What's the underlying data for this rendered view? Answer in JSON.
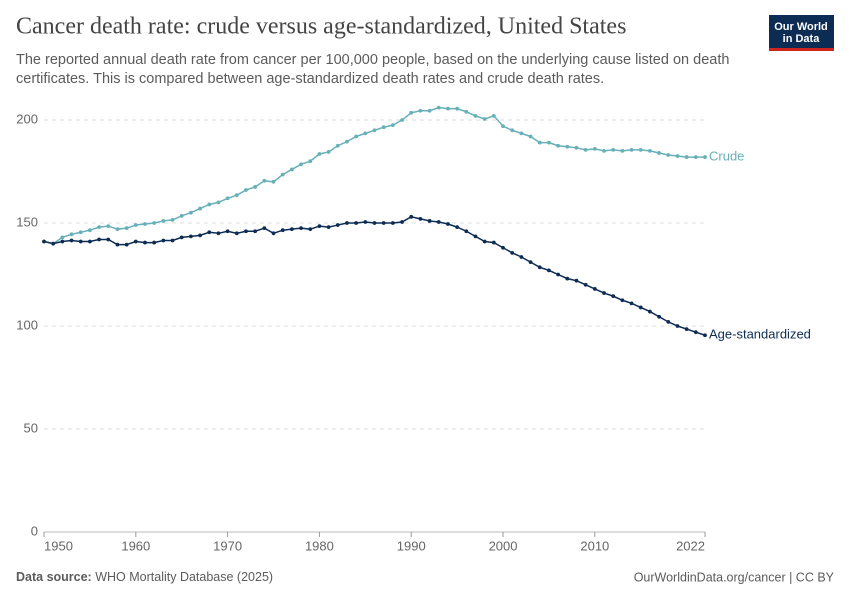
{
  "chart_data": {
    "type": "line",
    "title": "Cancer death rate: crude versus age-standardized, United States",
    "subtitle": [
      "The reported annual death rate from cancer per 100,000 people, based on the underlying cause listed on death",
      "certificates. This is compared between age-standardized death rates and crude death rates."
    ],
    "logo": [
      "Our World",
      "in Data"
    ],
    "source_label": "Data source:",
    "source": "WHO Mortality Database (2025)",
    "url": "OurWorldinData.org/cancer | CC BY",
    "x": [
      1950,
      1951,
      1952,
      1953,
      1954,
      1955,
      1956,
      1957,
      1958,
      1959,
      1960,
      1961,
      1962,
      1963,
      1964,
      1965,
      1966,
      1967,
      1968,
      1969,
      1970,
      1971,
      1972,
      1973,
      1974,
      1975,
      1976,
      1977,
      1978,
      1979,
      1980,
      1981,
      1982,
      1983,
      1984,
      1985,
      1986,
      1987,
      1988,
      1989,
      1990,
      1991,
      1992,
      1993,
      1994,
      1995,
      1996,
      1997,
      1998,
      1999,
      2000,
      2001,
      2002,
      2003,
      2004,
      2005,
      2006,
      2007,
      2008,
      2009,
      2010,
      2011,
      2012,
      2013,
      2014,
      2015,
      2016,
      2017,
      2018,
      2019,
      2020,
      2021,
      2022
    ],
    "series": [
      {
        "name": "Crude",
        "color": "#67b0b8",
        "values": [
          141,
          140,
          143,
          144.5,
          145.5,
          146.5,
          148,
          148.5,
          147,
          147.5,
          149,
          149.5,
          150,
          151,
          151.5,
          153.5,
          155,
          157,
          159,
          160,
          162,
          163.5,
          166,
          167.5,
          170.5,
          170,
          173.5,
          176,
          178.5,
          180,
          183.5,
          184.5,
          187.5,
          189.5,
          192,
          193.5,
          195,
          196.5,
          197.5,
          200,
          203.5,
          204.5,
          204.5,
          206,
          205.5,
          205.5,
          204,
          202,
          200.5,
          202,
          197,
          195,
          193.5,
          192,
          189,
          189,
          187.5,
          187,
          186.5,
          185.5,
          186,
          185,
          185.5,
          185,
          185.5,
          185.5,
          185,
          184,
          183,
          182.5,
          182,
          182,
          182
        ]
      },
      {
        "name": "Age-standardized",
        "color": "#0d2c54",
        "values": [
          141,
          140,
          141,
          141.5,
          141,
          141,
          142,
          142,
          139.5,
          139.5,
          141,
          140.5,
          140.5,
          141.5,
          141.5,
          143,
          143.5,
          144,
          145.5,
          145,
          146,
          145,
          146,
          146,
          147.5,
          145,
          146.5,
          147,
          147.5,
          147,
          148.5,
          148,
          149,
          150,
          150,
          150.5,
          150,
          150,
          150,
          150.5,
          153,
          152,
          151,
          150.5,
          149.5,
          148,
          146,
          143.5,
          141,
          140.5,
          138,
          135.5,
          133.5,
          131,
          128.5,
          127,
          125,
          123,
          122,
          120,
          118,
          116,
          114.5,
          112.5,
          111,
          109,
          107,
          104.5,
          102,
          100,
          98.5,
          97,
          95.5
        ]
      }
    ],
    "xlim": [
      1950,
      2022
    ],
    "xticks": [
      1950,
      1960,
      1970,
      1980,
      1990,
      2000,
      2010,
      2022
    ],
    "ylim": [
      0,
      200
    ],
    "yticks": [
      0,
      50,
      100,
      150,
      200
    ],
    "grid": true
  }
}
